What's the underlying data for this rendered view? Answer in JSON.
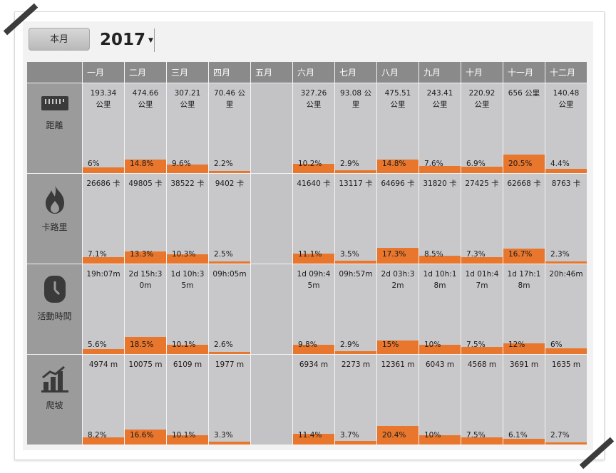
{
  "toolbar": {
    "month_button": "本月",
    "year": "2017"
  },
  "months": [
    "一月",
    "二月",
    "三月",
    "四月",
    "五月",
    "六月",
    "七月",
    "八月",
    "九月",
    "十月",
    "十一月",
    "十二月"
  ],
  "colors": {
    "bar": "#e8762c",
    "cell": "#c8c8ca",
    "rowhead": "#9b9b9b",
    "header": "#8a8a8a"
  },
  "rows": [
    {
      "label": "距離",
      "icon": "ruler-icon",
      "cells": [
        {
          "value": "193.34 公里",
          "pct": "6%",
          "frac": 0.06
        },
        {
          "value": "474.66 公里",
          "pct": "14.8%",
          "frac": 0.148
        },
        {
          "value": "307.21 公里",
          "pct": "9.6%",
          "frac": 0.096
        },
        {
          "value": "70.46 公里",
          "pct": "2.2%",
          "frac": 0.022
        },
        {
          "value": "",
          "pct": "",
          "frac": 0
        },
        {
          "value": "327.26 公里",
          "pct": "10.2%",
          "frac": 0.102
        },
        {
          "value": "93.08 公里",
          "pct": "2.9%",
          "frac": 0.029
        },
        {
          "value": "475.51 公里",
          "pct": "14.8%",
          "frac": 0.148
        },
        {
          "value": "243.41 公里",
          "pct": "7.6%",
          "frac": 0.076
        },
        {
          "value": "220.92 公里",
          "pct": "6.9%",
          "frac": 0.069
        },
        {
          "value": "656 公里",
          "pct": "20.5%",
          "frac": 0.205
        },
        {
          "value": "140.48 公里",
          "pct": "4.4%",
          "frac": 0.044
        }
      ]
    },
    {
      "label": "卡路里",
      "icon": "flame-icon",
      "cells": [
        {
          "value": "26686 卡",
          "pct": "7.1%",
          "frac": 0.071
        },
        {
          "value": "49805 卡",
          "pct": "13.3%",
          "frac": 0.133
        },
        {
          "value": "38522 卡",
          "pct": "10.3%",
          "frac": 0.103
        },
        {
          "value": "9402 卡",
          "pct": "2.5%",
          "frac": 0.025
        },
        {
          "value": "",
          "pct": "",
          "frac": 0
        },
        {
          "value": "41640 卡",
          "pct": "11.1%",
          "frac": 0.111
        },
        {
          "value": "13117 卡",
          "pct": "3.5%",
          "frac": 0.035
        },
        {
          "value": "64696 卡",
          "pct": "17.3%",
          "frac": 0.173
        },
        {
          "value": "31820 卡",
          "pct": "8.5%",
          "frac": 0.085
        },
        {
          "value": "27425 卡",
          "pct": "7.3%",
          "frac": 0.073
        },
        {
          "value": "62668 卡",
          "pct": "16.7%",
          "frac": 0.167
        },
        {
          "value": "8763 卡",
          "pct": "2.3%",
          "frac": 0.023
        }
      ]
    },
    {
      "label": "活動時間",
      "icon": "clock-icon",
      "cells": [
        {
          "value": "19h:07m",
          "pct": "5.6%",
          "frac": 0.056
        },
        {
          "value": "2d 15h:30m",
          "pct": "18.5%",
          "frac": 0.185
        },
        {
          "value": "1d 10h:35m",
          "pct": "10.1%",
          "frac": 0.101
        },
        {
          "value": "09h:05m",
          "pct": "2.6%",
          "frac": 0.026
        },
        {
          "value": "",
          "pct": "",
          "frac": 0
        },
        {
          "value": "1d 09h:45m",
          "pct": "9.8%",
          "frac": 0.098
        },
        {
          "value": "09h:57m",
          "pct": "2.9%",
          "frac": 0.029
        },
        {
          "value": "2d 03h:32m",
          "pct": "15%",
          "frac": 0.15
        },
        {
          "value": "1d 10h:18m",
          "pct": "10%",
          "frac": 0.1
        },
        {
          "value": "1d 01h:47m",
          "pct": "7.5%",
          "frac": 0.075
        },
        {
          "value": "1d 17h:18m",
          "pct": "12%",
          "frac": 0.12
        },
        {
          "value": "20h:46m",
          "pct": "6%",
          "frac": 0.06
        }
      ]
    },
    {
      "label": "爬坡",
      "icon": "climb-chart-icon",
      "cells": [
        {
          "value": "4974 m",
          "pct": "8.2%",
          "frac": 0.082
        },
        {
          "value": "10075 m",
          "pct": "16.6%",
          "frac": 0.166
        },
        {
          "value": "6109 m",
          "pct": "10.1%",
          "frac": 0.101
        },
        {
          "value": "1977 m",
          "pct": "3.3%",
          "frac": 0.033
        },
        {
          "value": "",
          "pct": "",
          "frac": 0
        },
        {
          "value": "6934 m",
          "pct": "11.4%",
          "frac": 0.114
        },
        {
          "value": "2273 m",
          "pct": "3.7%",
          "frac": 0.037
        },
        {
          "value": "12361 m",
          "pct": "20.4%",
          "frac": 0.204
        },
        {
          "value": "6043 m",
          "pct": "10%",
          "frac": 0.1
        },
        {
          "value": "4568 m",
          "pct": "7.5%",
          "frac": 0.075
        },
        {
          "value": "3691 m",
          "pct": "6.1%",
          "frac": 0.061
        },
        {
          "value": "1635 m",
          "pct": "2.7%",
          "frac": 0.027
        }
      ]
    }
  ]
}
